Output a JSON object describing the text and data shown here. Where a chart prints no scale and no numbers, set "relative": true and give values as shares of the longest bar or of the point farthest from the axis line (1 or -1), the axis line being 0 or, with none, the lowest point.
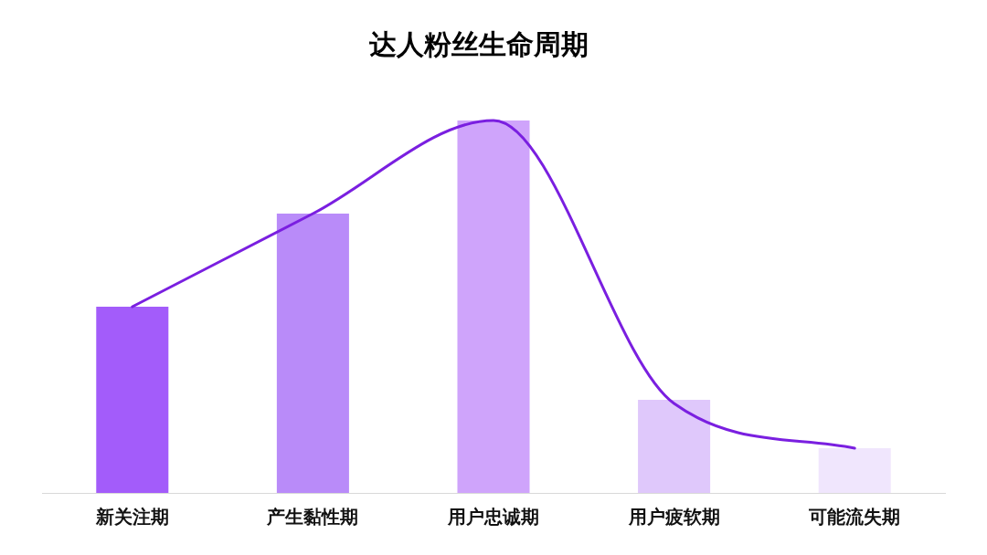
{
  "chart_data": {
    "type": "bar",
    "title": "达人粉丝生命周期",
    "relative": true,
    "marker": "none",
    "categories": [
      "新关注期",
      "产生黏性期",
      "用户忠诚期",
      "用户疲软期",
      "可能流失期"
    ],
    "series": [
      {
        "colors": [
          "#a35cfa",
          "#b98bf9",
          "#cfa4fb",
          "#dfc8fb",
          "#f0e6fd"
        ],
        "values": [
          0.5,
          0.75,
          1,
          0.25,
          0.12
        ]
      },
      {
        "type": "line",
        "color": "#7a1fe0",
        "values": [
          0.5,
          0.75,
          1,
          0.24,
          0.12
        ]
      }
    ]
  }
}
